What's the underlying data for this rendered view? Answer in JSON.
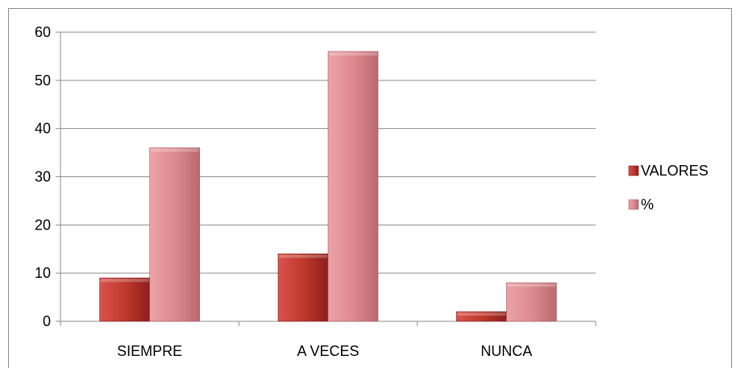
{
  "chart_data": {
    "type": "bar",
    "title": "",
    "xlabel": "",
    "ylabel": "",
    "categories": [
      "SIEMPRE",
      "A VECES",
      "NUNCA"
    ],
    "series": [
      {
        "name": "VALORES",
        "values": [
          9,
          14,
          2
        ],
        "color": "#c0392b"
      },
      {
        "name": "%",
        "values": [
          36,
          56,
          8
        ],
        "color": "#e0898d"
      }
    ],
    "ylim": [
      0,
      60
    ],
    "yticks": [
      0,
      10,
      20,
      30,
      40,
      50,
      60
    ],
    "grid": true,
    "legend_position": "right"
  }
}
